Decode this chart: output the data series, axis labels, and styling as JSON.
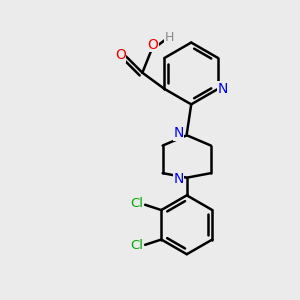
{
  "bg_color": "#ebebeb",
  "bond_color": "#000000",
  "bond_width": 1.8,
  "atom_colors": {
    "N": "#0000ee",
    "O": "#ee0000",
    "Cl": "#00aa00",
    "H": "#888888",
    "C": "#000000"
  }
}
